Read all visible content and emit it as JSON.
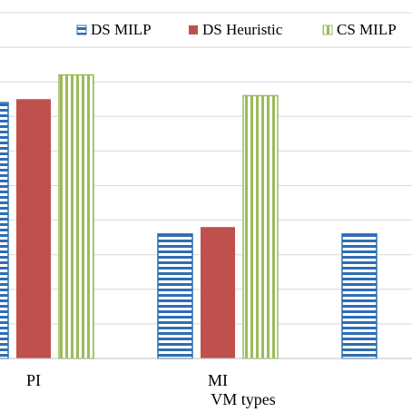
{
  "chart_data": {
    "type": "bar",
    "xlabel": "VM types",
    "categories": [
      "PI",
      "MI",
      ""
    ],
    "series": [
      {
        "name": "DS MILP",
        "values": [
          7.4,
          3.6,
          3.6
        ],
        "color": "#2E6DB4",
        "pattern": "horizontal-stripes"
      },
      {
        "name": "DS Heuristic",
        "values": [
          7.5,
          3.8,
          null
        ],
        "color": "#C0504D",
        "pattern": "solid"
      },
      {
        "name": "CS MILP",
        "values": [
          8.2,
          7.6,
          null
        ],
        "color": "#9BBB59",
        "pattern": "vertical-stripes"
      }
    ],
    "ylim": [
      0,
      10
    ],
    "grid": true,
    "legend": "top"
  }
}
